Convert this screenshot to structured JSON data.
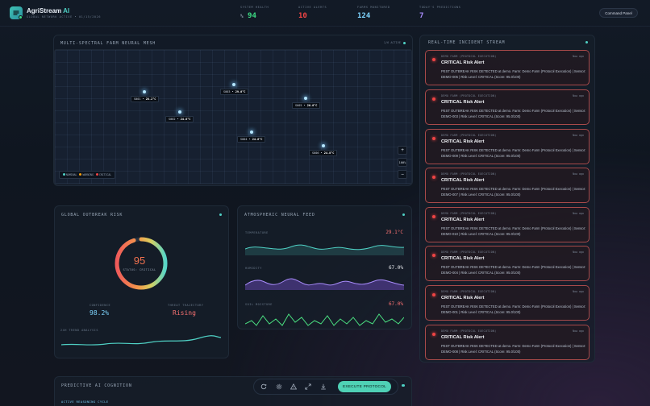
{
  "header": {
    "app_name": "AgriStream",
    "app_name_ai": "AI",
    "subtitle": "GLOBAL NETWORK ACTIVE • 01/15/2026",
    "stats": [
      {
        "label": "SYSTEM HEALTH",
        "prefix": "%",
        "value": "94",
        "color": "#3ddc84"
      },
      {
        "label": "ACTIVE ALERTS",
        "value": "10",
        "color": "#ef4444"
      },
      {
        "label": "FARMS MONITORED",
        "value": "124",
        "color": "#7dd3fc"
      },
      {
        "label": "TODAY'S PREDICTIONS",
        "value": "7",
        "color": "#a78bfa"
      }
    ],
    "command_label": "Command Panel"
  },
  "mesh": {
    "title": "MULTI-SPECTRAL FARM NEURAL MESH",
    "status": "1/6 ACTIVE",
    "sensors": [
      {
        "id": "S001",
        "temp": "28.2°C"
      },
      {
        "id": "S002",
        "temp": "24.8°C"
      },
      {
        "id": "S003",
        "temp": "29.0°C"
      },
      {
        "id": "S004",
        "temp": "24.6°C"
      },
      {
        "id": "S005",
        "temp": "26.0°C"
      },
      {
        "id": "S006",
        "temp": "24.8°C"
      }
    ],
    "legend": [
      "NOMINAL",
      "WARNING",
      "CRITICAL"
    ],
    "legend_colors": [
      "#4fd1c5",
      "#f59e0b",
      "#ef4444"
    ],
    "zoom_in": "+",
    "zoom_level": "100%",
    "zoom_out": "−"
  },
  "risk": {
    "title": "GLOBAL OUTBREAK RISK",
    "score": "95",
    "score_fraction": 0.95,
    "status": "STATUS: CRITICAL",
    "confidence_label": "CONFIDENCE",
    "confidence_value": "98.2%",
    "trajectory_label": "THREAT TRAJECTORY",
    "trajectory_value": "Rising",
    "trend_label": "24H TREND ANALYSIS"
  },
  "atmos": {
    "title": "ATMOSPHERIC NEURAL FEED",
    "rows": [
      {
        "label": "TEMPERATURE",
        "value": "29.1°C",
        "color": "#f87171"
      },
      {
        "label": "HUMIDITY",
        "value": "67.0%",
        "color": "#e5e7eb"
      },
      {
        "label": "SOIL MOISTURE",
        "value": "67.0%",
        "color": "#f87171"
      }
    ]
  },
  "incidents": {
    "title": "REAL-TIME INCIDENT STREAM",
    "items": [
      {
        "source": "DEMO FARM (PROTOCOL EXECUTION)",
        "time": "Now ago",
        "title": "CRITICAL Risk Alert",
        "body": "PEST OUTBREAK RISK DETECTED at demo. Farm: Demo Farm (Protocol Execution) | Sensor: DEMO-005 | Risk Level: CRITICAL (Score: 95.0/100)"
      },
      {
        "source": "DEMO FARM (PROTOCOL EXECUTION)",
        "time": "Now ago",
        "title": "CRITICAL Risk Alert",
        "body": "PEST OUTBREAK RISK DETECTED at demo. Farm: Demo Farm (Protocol Execution) | Sensor: DEMO-003 | Risk Level: CRITICAL (Score: 95.0/100)"
      },
      {
        "source": "DEMO FARM (PROTOCOL EXECUTION)",
        "time": "Now ago",
        "title": "CRITICAL Risk Alert",
        "body": "PEST OUTBREAK RISK DETECTED at demo. Farm: Demo Farm (Protocol Execution) | Sensor: DEMO-009 | Risk Level: CRITICAL (Score: 95.0/100)"
      },
      {
        "source": "DEMO FARM (PROTOCOL EXECUTION)",
        "time": "Now ago",
        "title": "CRITICAL Risk Alert",
        "body": "PEST OUTBREAK RISK DETECTED at demo. Farm: Demo Farm (Protocol Execution) | Sensor: DEMO-007 | Risk Level: CRITICAL (Score: 95.0/100)"
      },
      {
        "source": "DEMO FARM (PROTOCOL EXECUTION)",
        "time": "Now ago",
        "title": "CRITICAL Risk Alert",
        "body": "PEST OUTBREAK RISK DETECTED at demo. Farm: Demo Farm (Protocol Execution) | Sensor: DEMO-010 | Risk Level: CRITICAL (Score: 95.0/100)"
      },
      {
        "source": "DEMO FARM (PROTOCOL EXECUTION)",
        "time": "Now ago",
        "title": "CRITICAL Risk Alert",
        "body": "PEST OUTBREAK RISK DETECTED at demo. Farm: Demo Farm (Protocol Execution) | Sensor: DEMO-004 | Risk Level: CRITICAL (Score: 95.0/100)"
      },
      {
        "source": "DEMO FARM (PROTOCOL EXECUTION)",
        "time": "Now ago",
        "title": "CRITICAL Risk Alert",
        "body": "PEST OUTBREAK RISK DETECTED at demo. Farm: Demo Farm (Protocol Execution) | Sensor: DEMO-001 | Risk Level: CRITICAL (Score: 95.0/100)"
      },
      {
        "source": "DEMO FARM (PROTOCOL EXECUTION)",
        "time": "Now ago",
        "title": "CRITICAL Risk Alert",
        "body": "PEST OUTBREAK RISK DETECTED at demo. Farm: Demo Farm (Protocol Execution) | Sensor: DEMO-008 | Risk Level: CRITICAL (Score: 95.0/100)"
      }
    ]
  },
  "cognition": {
    "title": "PREDICTIVE AI COGNITION",
    "sub": "ACTIVE REASONING CYCLE"
  },
  "toolbar": {
    "icons": [
      "refresh-icon",
      "gear-icon",
      "warning-icon",
      "expand-icon",
      "download-icon"
    ],
    "execute_label": "EXECUTE PROTOCOL"
  }
}
